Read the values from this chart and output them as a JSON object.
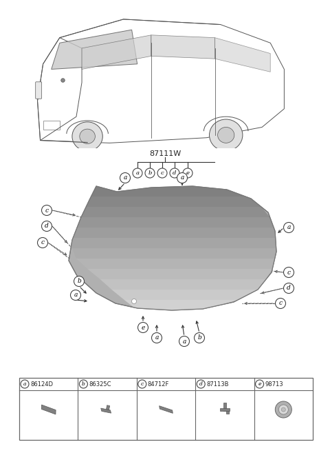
{
  "bg_color": "#ffffff",
  "part_number_main": "87111W",
  "parts": [
    {
      "label": "a",
      "code": "86124D"
    },
    {
      "label": "b",
      "code": "86325C"
    },
    {
      "label": "c",
      "code": "84712F"
    },
    {
      "label": "d",
      "code": "87113B"
    },
    {
      "label": "e",
      "code": "98713"
    }
  ],
  "line_color": "#333333",
  "glass_dark": "#909090",
  "glass_light": "#d8d8d8",
  "legend_box_color": "#555555",
  "circle_edge": "#444444",
  "annotation_line": "#555555"
}
